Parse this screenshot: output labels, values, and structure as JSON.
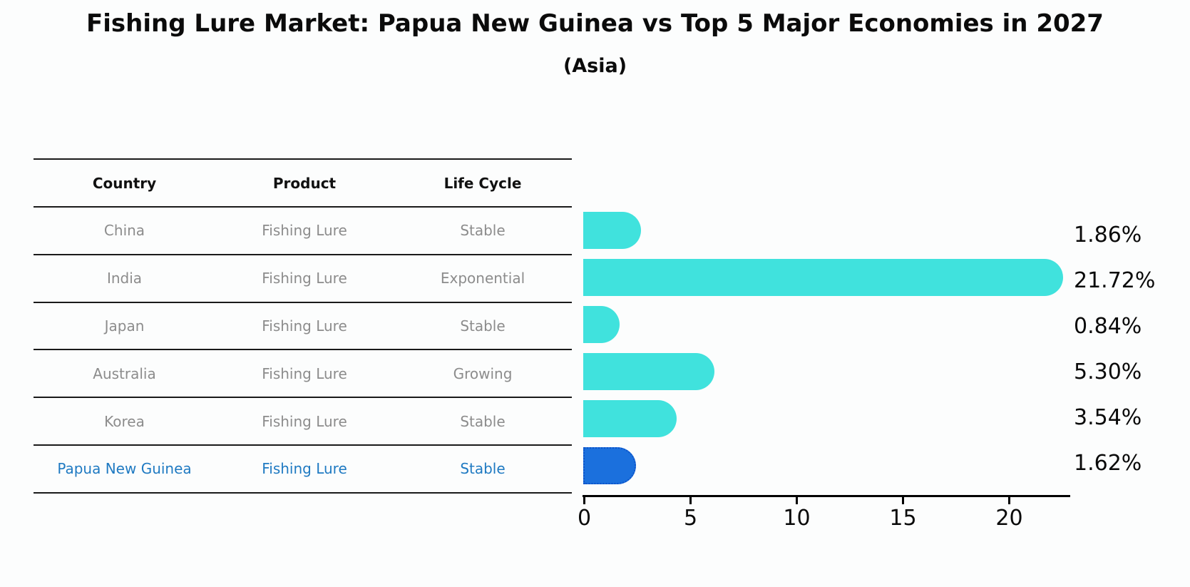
{
  "title": "Fishing Lure Market: Papua New Guinea vs Top 5 Major Economies in 2027",
  "subtitle": "(Asia)",
  "table": {
    "headers": [
      "Country",
      "Product",
      "Life Cycle"
    ],
    "rows": [
      {
        "country": "China",
        "product": "Fishing Lure",
        "life_cycle": "Stable",
        "highlighted": false
      },
      {
        "country": "India",
        "product": "Fishing Lure",
        "life_cycle": "Exponential",
        "highlighted": false
      },
      {
        "country": "Japan",
        "product": "Fishing Lure",
        "life_cycle": "Stable",
        "highlighted": false
      },
      {
        "country": "Australia",
        "product": "Fishing Lure",
        "life_cycle": "Growing",
        "highlighted": false
      },
      {
        "country": "Korea",
        "product": "Fishing Lure",
        "life_cycle": "Stable",
        "highlighted": false
      },
      {
        "country": "Papua New Guinea",
        "product": "Fishing Lure",
        "life_cycle": "Stable",
        "highlighted": true
      }
    ]
  },
  "chart_data": {
    "type": "bar",
    "orientation": "horizontal",
    "title": "Fishing Lure Market: Papua New Guinea vs Top 5 Major Economies in 2027",
    "subtitle": "(Asia)",
    "categories": [
      "China",
      "India",
      "Japan",
      "Australia",
      "Korea",
      "Papua New Guinea"
    ],
    "values": [
      1.86,
      21.72,
      0.84,
      5.3,
      3.54,
      1.62
    ],
    "value_labels": [
      "1.86%",
      "21.72%",
      "0.84%",
      "5.30%",
      "3.54%",
      "1.62%"
    ],
    "xticks": [
      "0",
      "5",
      "10",
      "15",
      "20"
    ],
    "xtick_values": [
      0,
      5,
      10,
      15,
      20
    ],
    "xlim": [
      0,
      22.9
    ],
    "grid": false,
    "legend": false,
    "highlight_index": 5
  },
  "colors": {
    "bar": "#40e2dd",
    "highlight_bar": "#1b70dd",
    "highlight_bar_border": "#0d53c9",
    "header_text": "#111111",
    "row_text": "#8c8c8c",
    "highlight_text": "#1f7ac2",
    "axis": "#000000"
  }
}
